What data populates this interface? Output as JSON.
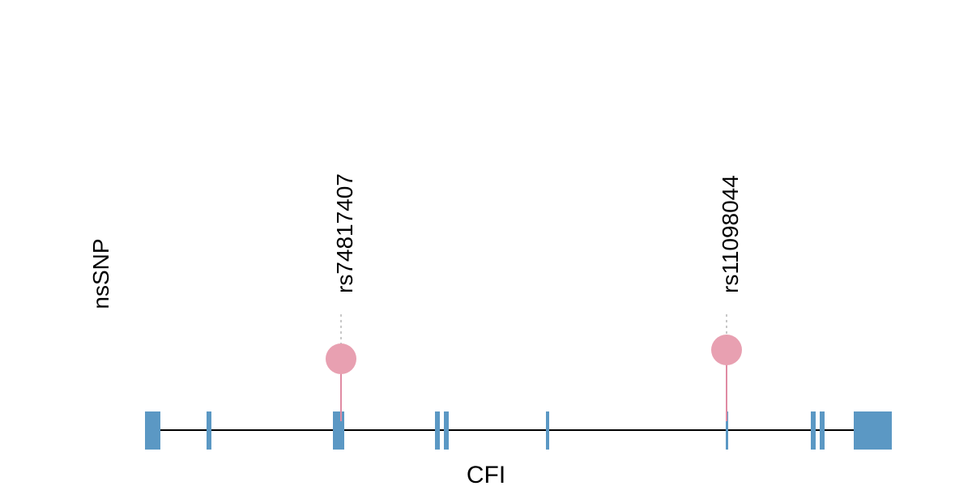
{
  "track_label": "nsSNP",
  "gene_label": "CFI",
  "colors": {
    "exon": "#5b98c4",
    "snp": "#e8a0b1",
    "snp_stem": "#e08ba3",
    "connector": "#c8c8c8",
    "intron": "#000000"
  },
  "snps": [
    {
      "id": "rs74817407"
    },
    {
      "id": "rs11098044"
    }
  ]
}
